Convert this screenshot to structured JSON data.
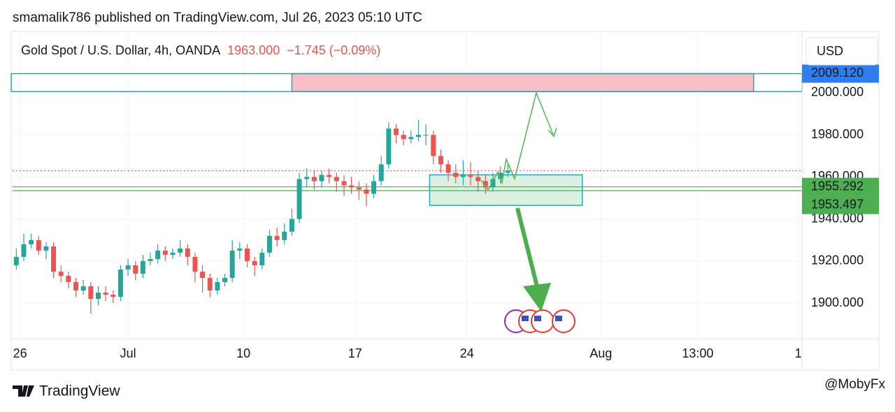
{
  "header": "smamalik786 published on TradingView.com, Jul 26, 2023 05:10 UTC",
  "chart_data": {
    "type": "candlestick",
    "title": "Gold Spot / U.S. Dollar, 4h, OANDA",
    "price": "1963.000",
    "change": "−1.745 (−0.09%)",
    "currency": "USD",
    "up_color": "#26a69a",
    "down_color": "#ef5350",
    "grid": true,
    "x": [
      1,
      3,
      5,
      7,
      9,
      11,
      13,
      15,
      17,
      19,
      21,
      23,
      25,
      27,
      29,
      31,
      33,
      35,
      37,
      39,
      41,
      43,
      45,
      47,
      49,
      51,
      53,
      55,
      57,
      59,
      61,
      63,
      65,
      67,
      69,
      71,
      73,
      75,
      77,
      79,
      81,
      83,
      85,
      87,
      89,
      91,
      93,
      95,
      97,
      99,
      101,
      103,
      105,
      107,
      109,
      111,
      113,
      115,
      117,
      119,
      121,
      123,
      125,
      127,
      129,
      131,
      133
    ],
    "ohlc": [
      [
        1918,
        1926,
        1916,
        1922
      ],
      [
        1922,
        1933,
        1920,
        1928
      ],
      [
        1928,
        1933,
        1926,
        1930
      ],
      [
        1930,
        1932,
        1923,
        1925
      ],
      [
        1925,
        1929,
        1921,
        1927
      ],
      [
        1927,
        1929,
        1912,
        1915
      ],
      [
        1915,
        1918,
        1910,
        1913
      ],
      [
        1913,
        1915,
        1907,
        1910
      ],
      [
        1910,
        1912,
        1903,
        1906
      ],
      [
        1906,
        1911,
        1904,
        1908
      ],
      [
        1908,
        1910,
        1895,
        1902
      ],
      [
        1902,
        1908,
        1899,
        1905
      ],
      [
        1905,
        1908,
        1901,
        1904
      ],
      [
        1904,
        1906,
        1900,
        1903
      ],
      [
        1903,
        1918,
        1901,
        1916
      ],
      [
        1916,
        1921,
        1913,
        1918
      ],
      [
        1918,
        1920,
        1911,
        1914
      ],
      [
        1914,
        1923,
        1912,
        1920
      ],
      [
        1920,
        1924,
        1918,
        1921
      ],
      [
        1921,
        1928,
        1919,
        1925
      ],
      [
        1925,
        1927,
        1920,
        1923
      ],
      [
        1923,
        1926,
        1921,
        1924
      ],
      [
        1924,
        1930,
        1922,
        1926
      ],
      [
        1926,
        1928,
        1918,
        1922
      ],
      [
        1922,
        1924,
        1910,
        1915
      ],
      [
        1915,
        1918,
        1905,
        1912
      ],
      [
        1912,
        1914,
        1903,
        1906
      ],
      [
        1906,
        1912,
        1904,
        1910
      ],
      [
        1910,
        1914,
        1908,
        1912
      ],
      [
        1912,
        1930,
        1910,
        1925
      ],
      [
        1925,
        1929,
        1921,
        1926
      ],
      [
        1926,
        1928,
        1917,
        1920
      ],
      [
        1920,
        1922,
        1913,
        1918
      ],
      [
        1918,
        1926,
        1916,
        1924
      ],
      [
        1924,
        1935,
        1922,
        1932
      ],
      [
        1932,
        1936,
        1927,
        1930
      ],
      [
        1930,
        1938,
        1928,
        1934
      ],
      [
        1934,
        1945,
        1932,
        1940
      ],
      [
        1940,
        1962,
        1938,
        1959
      ],
      [
        1959,
        1964,
        1955,
        1960
      ],
      [
        1960,
        1963,
        1954,
        1958
      ],
      [
        1958,
        1963,
        1955,
        1961
      ],
      [
        1961,
        1964,
        1957,
        1960
      ],
      [
        1960,
        1962,
        1953,
        1958
      ],
      [
        1958,
        1961,
        1951,
        1956
      ],
      [
        1956,
        1960,
        1952,
        1955
      ],
      [
        1955,
        1958,
        1949,
        1954
      ],
      [
        1954,
        1957,
        1946,
        1952
      ],
      [
        1952,
        1961,
        1950,
        1958
      ],
      [
        1958,
        1970,
        1956,
        1966
      ],
      [
        1966,
        1986,
        1964,
        1983
      ],
      [
        1983,
        1985,
        1976,
        1980
      ],
      [
        1980,
        1982,
        1975,
        1978
      ],
      [
        1978,
        1982,
        1976,
        1979
      ],
      [
        1979,
        1987,
        1977,
        1980
      ],
      [
        1980,
        1985,
        1975,
        1980
      ],
      [
        1980,
        1982,
        1966,
        1970
      ],
      [
        1970,
        1973,
        1962,
        1966
      ],
      [
        1966,
        1968,
        1958,
        1962
      ],
      [
        1962,
        1966,
        1957,
        1960
      ],
      [
        1960,
        1968,
        1956,
        1961
      ],
      [
        1961,
        1967,
        1956,
        1960
      ],
      [
        1960,
        1963,
        1953,
        1958
      ],
      [
        1958,
        1961,
        1952,
        1955
      ],
      [
        1955,
        1962,
        1953,
        1959
      ],
      [
        1959,
        1965,
        1957,
        1962
      ],
      [
        1962,
        1966,
        1960,
        1963
      ]
    ],
    "xlim": [
      0,
      212
    ],
    "xticks": [
      {
        "value": 2,
        "label": "26"
      },
      {
        "value": 31,
        "label": "Jul"
      },
      {
        "value": 62,
        "label": "10"
      },
      {
        "value": 92,
        "label": "17"
      },
      {
        "value": 122,
        "label": "24"
      },
      {
        "value": 158,
        "label": "Aug"
      },
      {
        "value": 184,
        "label": "13:00"
      },
      {
        "value": 211,
        "label": "1"
      }
    ],
    "ylim": [
      1883.1,
      2029.2
    ],
    "yticks": [
      {
        "value": 1900,
        "label": "1900.000"
      },
      {
        "value": 1920,
        "label": "1920.000"
      },
      {
        "value": 1940,
        "label": "1940.000"
      },
      {
        "value": 1960,
        "label": "1960.000"
      },
      {
        "value": 1980,
        "label": "1980.000"
      },
      {
        "value": 2000,
        "label": "2000.000"
      }
    ],
    "price_labels": [
      {
        "value": 2009.12,
        "label": "2009.120",
        "color": "#2f7ef0"
      },
      {
        "value": 1955.292,
        "label": "1955.292",
        "color": "#4caf50"
      },
      {
        "value": 1953.497,
        "label": "1953.497",
        "color": "#4caf50"
      }
    ],
    "zones": [
      {
        "high": 2009.12,
        "low": 2000.6,
        "x": [
          75,
          199
        ],
        "color": "#f8c0c6"
      },
      {
        "high": 1961,
        "low": 1946.5,
        "x": [
          112,
          153
        ],
        "color": "#d9f1de"
      }
    ]
  },
  "footer": {
    "brand": "TradingView",
    "watermark": "@MobyFx"
  }
}
